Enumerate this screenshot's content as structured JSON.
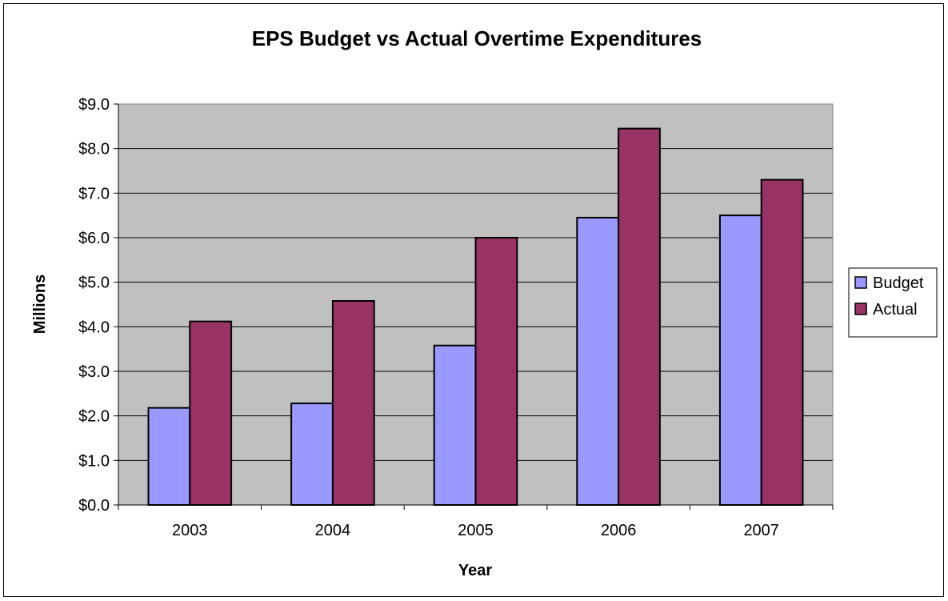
{
  "chart_data": {
    "type": "bar",
    "title": "EPS Budget vs Actual Overtime Expenditures",
    "xlabel": "Year",
    "ylabel": "Millions",
    "categories": [
      "2003",
      "2004",
      "2005",
      "2006",
      "2007"
    ],
    "series": [
      {
        "name": "Budget",
        "values": [
          2.18,
          2.28,
          3.58,
          6.45,
          6.5
        ],
        "color": "#9999ff"
      },
      {
        "name": "Actual",
        "values": [
          4.12,
          4.58,
          6.0,
          8.45,
          7.3
        ],
        "color": "#993366"
      }
    ],
    "ylim": [
      0,
      9
    ],
    "yticks": [
      0,
      1,
      2,
      3,
      4,
      5,
      6,
      7,
      8,
      9
    ],
    "ytick_labels": [
      "$0.0",
      "$1.0",
      "$2.0",
      "$3.0",
      "$4.0",
      "$5.0",
      "$6.0",
      "$7.0",
      "$8.0",
      "$9.0"
    ],
    "plot_background": "#c0c0c0",
    "grid": true,
    "legend": "right"
  }
}
